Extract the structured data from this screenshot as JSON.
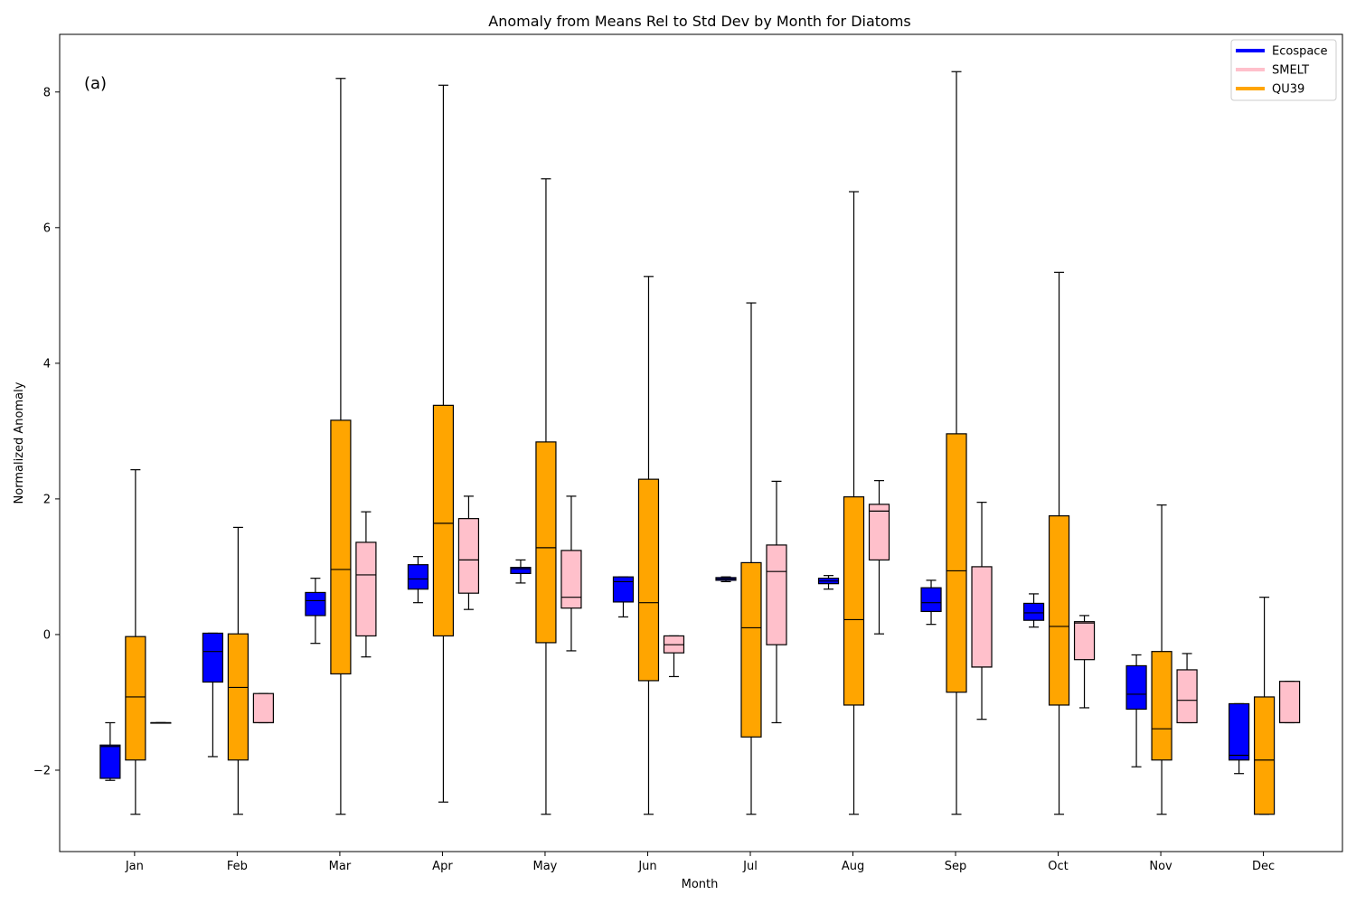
{
  "chart_data": {
    "type": "boxplot",
    "title": "Anomaly from Means Rel to Std Dev by Month for Diatoms",
    "xlabel": "Month",
    "ylabel": "Normalized Anomaly",
    "panel_label": "(a)",
    "ylim": [
      -3.2,
      8.85
    ],
    "yticks": [
      -2,
      0,
      2,
      4,
      6,
      8
    ],
    "categories": [
      "Jan",
      "Feb",
      "Mar",
      "Apr",
      "May",
      "Jun",
      "Jul",
      "Aug",
      "Sep",
      "Oct",
      "Nov",
      "Dec"
    ],
    "legend_position": "top-right",
    "grid": false,
    "series": [
      {
        "name": "Ecospace",
        "color": "#0000ff",
        "boxes": [
          {
            "whislo": -2.15,
            "q1": -2.12,
            "med": -1.65,
            "q3": -1.63,
            "whishi": -1.3
          },
          {
            "whislo": -1.8,
            "q1": -0.7,
            "med": -0.25,
            "q3": 0.02,
            "whishi": 0.02
          },
          {
            "whislo": -0.13,
            "q1": 0.28,
            "med": 0.5,
            "q3": 0.62,
            "whishi": 0.83
          },
          {
            "whislo": 0.47,
            "q1": 0.67,
            "med": 0.82,
            "q3": 1.03,
            "whishi": 1.15
          },
          {
            "whislo": 0.76,
            "q1": 0.9,
            "med": 0.97,
            "q3": 0.99,
            "whishi": 1.1
          },
          {
            "whislo": 0.26,
            "q1": 0.48,
            "med": 0.78,
            "q3": 0.85,
            "whishi": 0.85
          },
          {
            "whislo": 0.78,
            "q1": 0.8,
            "med": 0.82,
            "q3": 0.84,
            "whishi": 0.85
          },
          {
            "whislo": 0.67,
            "q1": 0.75,
            "med": 0.79,
            "q3": 0.83,
            "whishi": 0.87
          },
          {
            "whislo": 0.15,
            "q1": 0.34,
            "med": 0.47,
            "q3": 0.69,
            "whishi": 0.8
          },
          {
            "whislo": 0.11,
            "q1": 0.21,
            "med": 0.32,
            "q3": 0.46,
            "whishi": 0.6
          },
          {
            "whislo": -1.95,
            "q1": -1.1,
            "med": -0.88,
            "q3": -0.46,
            "whishi": -0.3
          },
          {
            "whislo": -2.05,
            "q1": -1.85,
            "med": -1.78,
            "q3": -1.02,
            "whishi": -1.02
          }
        ]
      },
      {
        "name": "QU39",
        "color": "#ffa500",
        "boxes": [
          {
            "whislo": -2.65,
            "q1": -1.85,
            "med": -0.92,
            "q3": -0.03,
            "whishi": 2.43
          },
          {
            "whislo": -2.65,
            "q1": -1.85,
            "med": -0.78,
            "q3": 0.01,
            "whishi": 1.58
          },
          {
            "whislo": -2.65,
            "q1": -0.58,
            "med": 0.96,
            "q3": 3.16,
            "whishi": 8.2
          },
          {
            "whislo": -2.47,
            "q1": -0.02,
            "med": 1.64,
            "q3": 3.38,
            "whishi": 8.1
          },
          {
            "whislo": -2.65,
            "q1": -0.12,
            "med": 1.28,
            "q3": 2.84,
            "whishi": 6.72
          },
          {
            "whislo": -2.65,
            "q1": -0.68,
            "med": 0.47,
            "q3": 2.29,
            "whishi": 5.28
          },
          {
            "whislo": -2.65,
            "q1": -1.51,
            "med": 0.1,
            "q3": 1.06,
            "whishi": 4.89
          },
          {
            "whislo": -2.65,
            "q1": -1.04,
            "med": 0.22,
            "q3": 2.03,
            "whishi": 6.53
          },
          {
            "whislo": -2.65,
            "q1": -0.85,
            "med": 0.94,
            "q3": 2.96,
            "whishi": 8.3
          },
          {
            "whislo": -2.65,
            "q1": -1.04,
            "med": 0.12,
            "q3": 1.75,
            "whishi": 5.34
          },
          {
            "whislo": -2.65,
            "q1": -1.85,
            "med": -1.39,
            "q3": -0.25,
            "whishi": 1.91
          },
          {
            "whislo": -2.65,
            "q1": -2.65,
            "med": -1.85,
            "q3": -0.92,
            "whishi": 0.55
          }
        ]
      },
      {
        "name": "SMELT",
        "color": "#ffc0cb",
        "boxes": [
          {
            "whislo": -1.3,
            "q1": -1.3,
            "med": -1.3,
            "q3": -1.3,
            "whishi": -1.3
          },
          {
            "whislo": -1.3,
            "q1": -1.3,
            "med": -1.3,
            "q3": -0.87,
            "whishi": -0.87
          },
          {
            "whislo": -0.33,
            "q1": -0.02,
            "med": 0.88,
            "q3": 1.36,
            "whishi": 1.81
          },
          {
            "whislo": 0.37,
            "q1": 0.61,
            "med": 1.1,
            "q3": 1.71,
            "whishi": 2.04
          },
          {
            "whislo": -0.24,
            "q1": 0.39,
            "med": 0.55,
            "q3": 1.24,
            "whishi": 2.04
          },
          {
            "whislo": -0.62,
            "q1": -0.27,
            "med": -0.15,
            "q3": -0.02,
            "whishi": -0.02
          },
          {
            "whislo": -1.3,
            "q1": -0.15,
            "med": 0.93,
            "q3": 1.32,
            "whishi": 2.26
          },
          {
            "whislo": 0.01,
            "q1": 1.1,
            "med": 1.82,
            "q3": 1.92,
            "whishi": 2.27
          },
          {
            "whislo": -1.25,
            "q1": -0.48,
            "med": -0.48,
            "q3": 1.0,
            "whishi": 1.95
          },
          {
            "whislo": -1.08,
            "q1": -0.37,
            "med": 0.17,
            "q3": 0.19,
            "whishi": 0.28
          },
          {
            "whislo": -1.3,
            "q1": -1.3,
            "med": -0.97,
            "q3": -0.52,
            "whishi": -0.28
          },
          {
            "whislo": -1.3,
            "q1": -1.3,
            "med": -1.3,
            "q3": -0.69,
            "whishi": -0.69
          }
        ]
      }
    ],
    "legend": [
      {
        "label": "Ecospace",
        "color": "#0000ff"
      },
      {
        "label": "SMELT",
        "color": "#ffc0cb"
      },
      {
        "label": "QU39",
        "color": "#ffa500"
      }
    ]
  }
}
